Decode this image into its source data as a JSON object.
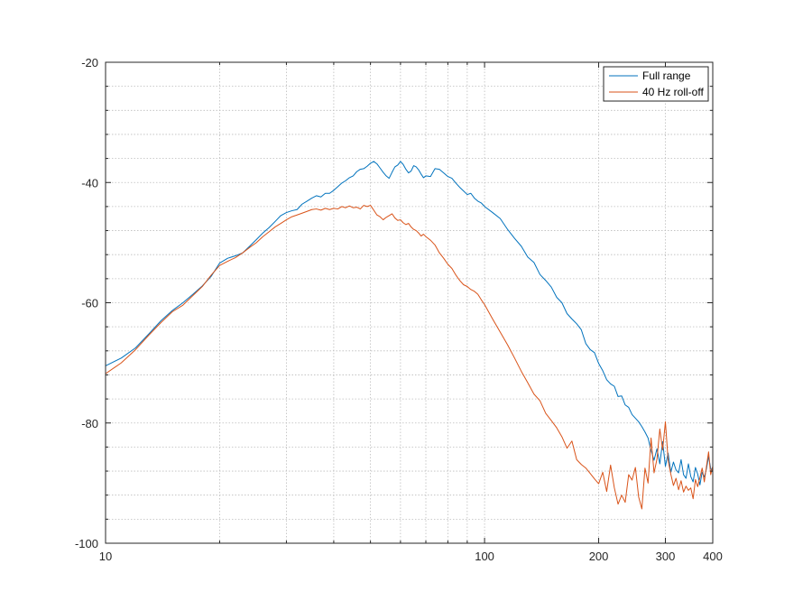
{
  "chart_data": {
    "type": "line",
    "x_scale": "log",
    "xlim": [
      10,
      400
    ],
    "ylim": [
      -100,
      -20
    ],
    "grid": true,
    "minor_grid": true,
    "legend_location": "top-right",
    "x_ticks": [
      {
        "value": 10,
        "label": "10"
      },
      {
        "value": 100,
        "label": "100"
      },
      {
        "value": 200,
        "label": "200"
      },
      {
        "value": 300,
        "label": "300"
      },
      {
        "value": 400,
        "label": "400"
      }
    ],
    "y_ticks": [
      {
        "value": -20,
        "label": "-20"
      },
      {
        "value": -40,
        "label": "-40"
      },
      {
        "value": -60,
        "label": "-60"
      },
      {
        "value": -80,
        "label": "-80"
      },
      {
        "value": -100,
        "label": "-100"
      }
    ],
    "series": [
      {
        "name": "Full range",
        "color": "#0072BD",
        "points": [
          [
            10,
            -70.5
          ],
          [
            11,
            -69.2
          ],
          [
            12,
            -67.5
          ],
          [
            13,
            -65.2
          ],
          [
            14,
            -63.0
          ],
          [
            15,
            -61.3
          ],
          [
            16,
            -60.0
          ],
          [
            17,
            -58.6
          ],
          [
            18,
            -57.2
          ],
          [
            19,
            -55.6
          ],
          [
            20,
            -53.4
          ],
          [
            21,
            -52.6
          ],
          [
            22,
            -52.2
          ],
          [
            23,
            -51.7
          ],
          [
            24,
            -50.6
          ],
          [
            25,
            -49.5
          ],
          [
            26,
            -48.4
          ],
          [
            27,
            -47.5
          ],
          [
            28,
            -46.5
          ],
          [
            29,
            -45.5
          ],
          [
            30,
            -45.0
          ],
          [
            31,
            -44.7
          ],
          [
            32,
            -44.5
          ],
          [
            33,
            -43.6
          ],
          [
            34,
            -43.1
          ],
          [
            35,
            -42.6
          ],
          [
            36,
            -42.2
          ],
          [
            37,
            -42.4
          ],
          [
            38,
            -41.8
          ],
          [
            39,
            -41.8
          ],
          [
            40,
            -41.3
          ],
          [
            41,
            -40.7
          ],
          [
            42,
            -40.1
          ],
          [
            43,
            -39.7
          ],
          [
            44,
            -39.2
          ],
          [
            45,
            -38.9
          ],
          [
            46,
            -38.2
          ],
          [
            47,
            -37.8
          ],
          [
            48,
            -37.7
          ],
          [
            49,
            -37.3
          ],
          [
            50,
            -36.8
          ],
          [
            51,
            -36.5
          ],
          [
            52,
            -36.9
          ],
          [
            53,
            -37.6
          ],
          [
            54,
            -38.3
          ],
          [
            55,
            -38.9
          ],
          [
            56,
            -39.3
          ],
          [
            57,
            -38.3
          ],
          [
            58,
            -37.4
          ],
          [
            59,
            -37.1
          ],
          [
            60,
            -36.5
          ],
          [
            61,
            -37.0
          ],
          [
            62,
            -37.8
          ],
          [
            63,
            -38.4
          ],
          [
            64,
            -38.1
          ],
          [
            65,
            -37.2
          ],
          [
            66,
            -37.4
          ],
          [
            67,
            -37.9
          ],
          [
            68,
            -38.6
          ],
          [
            69,
            -39.2
          ],
          [
            70,
            -38.9
          ],
          [
            72,
            -39.0
          ],
          [
            74,
            -37.7
          ],
          [
            76,
            -37.8
          ],
          [
            78,
            -38.4
          ],
          [
            80,
            -39.0
          ],
          [
            82,
            -39.3
          ],
          [
            84,
            -40.1
          ],
          [
            86,
            -40.8
          ],
          [
            88,
            -41.4
          ],
          [
            90,
            -42.0
          ],
          [
            92,
            -41.8
          ],
          [
            94,
            -42.6
          ],
          [
            96,
            -43.1
          ],
          [
            98,
            -43.4
          ],
          [
            100,
            -44.0
          ],
          [
            105,
            -45.0
          ],
          [
            110,
            -46.0
          ],
          [
            115,
            -47.8
          ],
          [
            120,
            -49.3
          ],
          [
            125,
            -50.6
          ],
          [
            130,
            -52.4
          ],
          [
            135,
            -53.3
          ],
          [
            140,
            -55.3
          ],
          [
            145,
            -56.3
          ],
          [
            150,
            -57.4
          ],
          [
            155,
            -59.1
          ],
          [
            160,
            -60.0
          ],
          [
            165,
            -61.8
          ],
          [
            170,
            -62.7
          ],
          [
            175,
            -63.5
          ],
          [
            180,
            -64.5
          ],
          [
            185,
            -66.8
          ],
          [
            190,
            -67.8
          ],
          [
            195,
            -68.3
          ],
          [
            200,
            -70.1
          ],
          [
            205,
            -71.3
          ],
          [
            210,
            -72.8
          ],
          [
            215,
            -73.5
          ],
          [
            220,
            -73.9
          ],
          [
            225,
            -75.6
          ],
          [
            230,
            -75.5
          ],
          [
            235,
            -77.0
          ],
          [
            240,
            -77.4
          ],
          [
            245,
            -78.6
          ],
          [
            250,
            -79.2
          ],
          [
            255,
            -79.8
          ],
          [
            260,
            -80.6
          ],
          [
            265,
            -81.5
          ],
          [
            270,
            -82.5
          ],
          [
            275,
            -84.6
          ],
          [
            280,
            -86.2
          ],
          [
            285,
            -84.3
          ],
          [
            290,
            -86.8
          ],
          [
            295,
            -83.1
          ],
          [
            300,
            -87.2
          ],
          [
            305,
            -85.0
          ],
          [
            310,
            -88.2
          ],
          [
            315,
            -86.5
          ],
          [
            320,
            -87.8
          ],
          [
            325,
            -88.3
          ],
          [
            330,
            -86.1
          ],
          [
            335,
            -88.6
          ],
          [
            340,
            -89.2
          ],
          [
            345,
            -86.8
          ],
          [
            350,
            -88.9
          ],
          [
            355,
            -89.8
          ],
          [
            360,
            -87.4
          ],
          [
            365,
            -88.5
          ],
          [
            370,
            -90.3
          ],
          [
            375,
            -88.2
          ],
          [
            380,
            -89.0
          ],
          [
            385,
            -87.6
          ],
          [
            390,
            -85.6
          ],
          [
            395,
            -87.5
          ],
          [
            400,
            -88.2
          ]
        ]
      },
      {
        "name": "40 Hz roll-off",
        "color": "#D95319",
        "points": [
          [
            10,
            -71.8
          ],
          [
            11,
            -70.0
          ],
          [
            12,
            -67.8
          ],
          [
            13,
            -65.4
          ],
          [
            14,
            -63.3
          ],
          [
            15,
            -61.5
          ],
          [
            16,
            -60.4
          ],
          [
            17,
            -58.8
          ],
          [
            18,
            -57.3
          ],
          [
            19,
            -55.4
          ],
          [
            20,
            -53.8
          ],
          [
            21,
            -53.1
          ],
          [
            22,
            -52.5
          ],
          [
            23,
            -51.7
          ],
          [
            24,
            -50.8
          ],
          [
            25,
            -50.0
          ],
          [
            26,
            -49.0
          ],
          [
            27,
            -48.2
          ],
          [
            28,
            -47.4
          ],
          [
            29,
            -46.8
          ],
          [
            30,
            -46.2
          ],
          [
            31,
            -45.7
          ],
          [
            32,
            -45.4
          ],
          [
            33,
            -45.1
          ],
          [
            34,
            -44.8
          ],
          [
            35,
            -44.5
          ],
          [
            36,
            -44.4
          ],
          [
            37,
            -44.6
          ],
          [
            38,
            -44.3
          ],
          [
            39,
            -44.5
          ],
          [
            40,
            -44.3
          ],
          [
            41,
            -44.4
          ],
          [
            42,
            -44.0
          ],
          [
            43,
            -44.2
          ],
          [
            44,
            -43.9
          ],
          [
            45,
            -44.2
          ],
          [
            46,
            -44.1
          ],
          [
            47,
            -44.4
          ],
          [
            48,
            -43.8
          ],
          [
            49,
            -44.0
          ],
          [
            50,
            -43.8
          ],
          [
            51,
            -44.6
          ],
          [
            52,
            -45.4
          ],
          [
            53,
            -45.7
          ],
          [
            54,
            -46.2
          ],
          [
            55,
            -45.8
          ],
          [
            56,
            -45.5
          ],
          [
            57,
            -45.2
          ],
          [
            58,
            -45.9
          ],
          [
            59,
            -46.3
          ],
          [
            60,
            -46.2
          ],
          [
            61,
            -46.7
          ],
          [
            62,
            -47.0
          ],
          [
            63,
            -46.8
          ],
          [
            64,
            -47.4
          ],
          [
            65,
            -47.8
          ],
          [
            66,
            -48.0
          ],
          [
            67,
            -48.4
          ],
          [
            68,
            -48.9
          ],
          [
            69,
            -48.6
          ],
          [
            70,
            -49.0
          ],
          [
            72,
            -49.6
          ],
          [
            74,
            -50.4
          ],
          [
            76,
            -51.7
          ],
          [
            78,
            -52.6
          ],
          [
            80,
            -53.6
          ],
          [
            82,
            -54.3
          ],
          [
            84,
            -55.4
          ],
          [
            86,
            -56.3
          ],
          [
            88,
            -57.0
          ],
          [
            90,
            -57.3
          ],
          [
            92,
            -57.8
          ],
          [
            94,
            -58.1
          ],
          [
            96,
            -58.6
          ],
          [
            98,
            -59.5
          ],
          [
            100,
            -60.3
          ],
          [
            105,
            -62.7
          ],
          [
            110,
            -64.9
          ],
          [
            115,
            -67.0
          ],
          [
            120,
            -69.2
          ],
          [
            125,
            -71.4
          ],
          [
            130,
            -73.3
          ],
          [
            135,
            -75.2
          ],
          [
            140,
            -76.3
          ],
          [
            145,
            -78.4
          ],
          [
            150,
            -79.6
          ],
          [
            155,
            -80.8
          ],
          [
            160,
            -82.3
          ],
          [
            165,
            -84.2
          ],
          [
            170,
            -83.0
          ],
          [
            175,
            -86.1
          ],
          [
            180,
            -86.9
          ],
          [
            185,
            -87.5
          ],
          [
            190,
            -88.4
          ],
          [
            195,
            -89.3
          ],
          [
            200,
            -90.1
          ],
          [
            205,
            -88.2
          ],
          [
            210,
            -91.4
          ],
          [
            215,
            -87.0
          ],
          [
            220,
            -90.8
          ],
          [
            225,
            -93.5
          ],
          [
            230,
            -92.0
          ],
          [
            235,
            -93.2
          ],
          [
            240,
            -88.6
          ],
          [
            245,
            -89.5
          ],
          [
            250,
            -87.4
          ],
          [
            255,
            -92.3
          ],
          [
            260,
            -94.3
          ],
          [
            265,
            -87.5
          ],
          [
            270,
            -90.0
          ],
          [
            275,
            -82.5
          ],
          [
            280,
            -88.3
          ],
          [
            285,
            -86.0
          ],
          [
            290,
            -81.0
          ],
          [
            295,
            -84.5
          ],
          [
            300,
            -79.8
          ],
          [
            305,
            -86.2
          ],
          [
            310,
            -88.5
          ],
          [
            315,
            -90.4
          ],
          [
            320,
            -89.2
          ],
          [
            325,
            -91.1
          ],
          [
            330,
            -89.6
          ],
          [
            335,
            -91.5
          ],
          [
            340,
            -90.5
          ],
          [
            345,
            -91.2
          ],
          [
            350,
            -90.8
          ],
          [
            355,
            -92.6
          ],
          [
            360,
            -89.4
          ],
          [
            365,
            -90.6
          ],
          [
            370,
            -89.1
          ],
          [
            375,
            -87.5
          ],
          [
            380,
            -89.8
          ],
          [
            385,
            -87.2
          ],
          [
            390,
            -84.8
          ],
          [
            395,
            -88.6
          ],
          [
            400,
            -87.2
          ]
        ]
      }
    ]
  }
}
